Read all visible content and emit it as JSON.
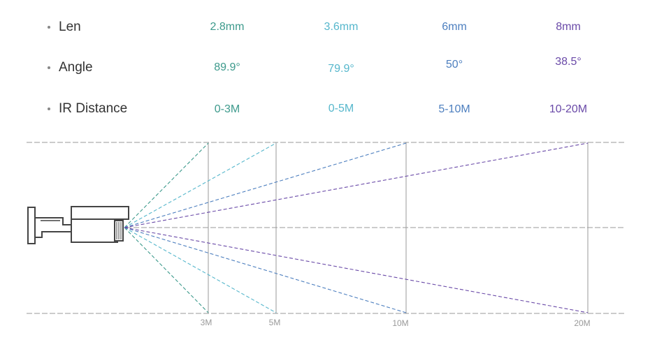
{
  "specs": {
    "rows": [
      {
        "label": "Len",
        "values": [
          "2.8mm",
          "3.6mm",
          "6mm",
          "8mm"
        ]
      },
      {
        "label": "Angle",
        "values": [
          "89.9°",
          "79.9°",
          "50°",
          "38.5°"
        ]
      },
      {
        "label": "IR Distance",
        "values": [
          "0-3M",
          "0-5M",
          "5-10M",
          "10-20M"
        ]
      }
    ],
    "colors": [
      "#3d9a8c",
      "#56b7cc",
      "#4d7fbf",
      "#6a4aa8"
    ]
  },
  "diagram": {
    "distance_labels": [
      "3M",
      "5M",
      "10M",
      "20M"
    ],
    "camera_icon": "bullet-camera-icon"
  }
}
